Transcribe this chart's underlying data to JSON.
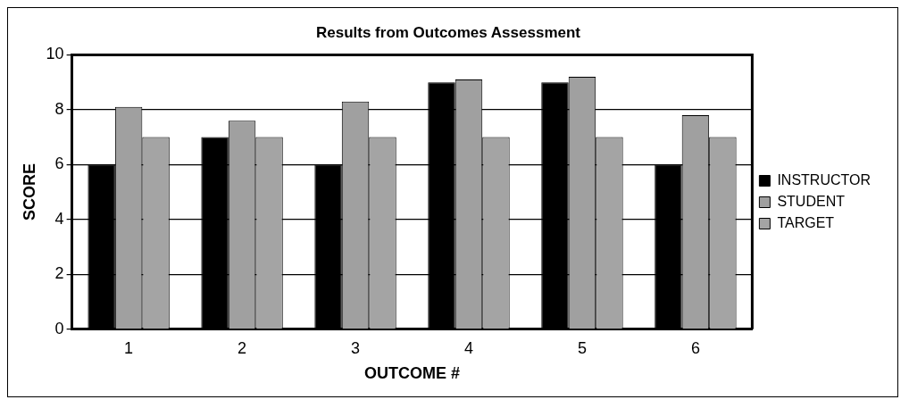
{
  "chart_data": {
    "type": "bar",
    "title": "Results from Outcomes Assessment",
    "xlabel": "OUTCOME #",
    "ylabel": "SCORE",
    "categories": [
      "1",
      "2",
      "3",
      "4",
      "5",
      "6"
    ],
    "series": [
      {
        "name": "INSTRUCTOR",
        "color": "#000000",
        "values": [
          6,
          7,
          6,
          9,
          9,
          6
        ]
      },
      {
        "name": "STUDENT",
        "color": "#a0a0a0",
        "values": [
          8.1,
          7.6,
          8.3,
          9.1,
          9.2,
          7.8
        ]
      },
      {
        "name": "TARGET",
        "color": "#a4a4a4",
        "values": [
          7,
          7,
          7,
          7,
          7,
          7
        ]
      }
    ],
    "ylim": [
      0,
      10
    ],
    "yticks": [
      0,
      2,
      4,
      6,
      8,
      10
    ],
    "grid": "y",
    "legend": "right"
  }
}
